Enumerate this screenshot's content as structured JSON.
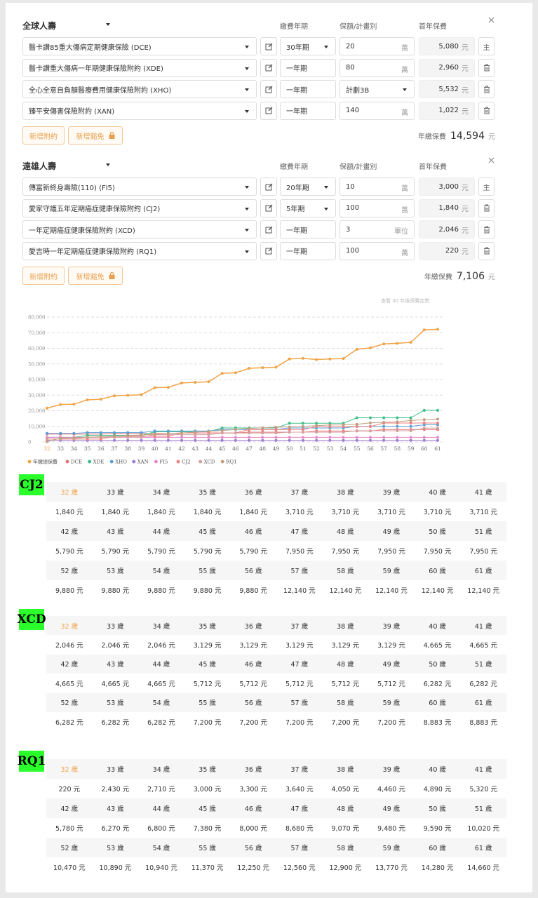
{
  "sections": [
    {
      "title": "全球人壽",
      "headers": [
        "繳費年期",
        "保額/計畫別",
        "首年保費"
      ],
      "rows": [
        {
          "product": "醫卡讚85重大傷病定期健康保險 (DCE)",
          "term": "30年期",
          "term_dropdown": true,
          "amount": "20",
          "unit": "萬",
          "premium": "5,080",
          "currency": "元",
          "action": "主"
        },
        {
          "product": "醫卡讚重大傷病一年期健康保險附約 (XDE)",
          "term": "一年期",
          "term_dropdown": false,
          "amount": "80",
          "unit": "萬",
          "premium": "2,960",
          "currency": "元"
        },
        {
          "product": "全心全意自負額醫療費用健康保險附約 (XHO)",
          "term": "一年期",
          "term_dropdown": false,
          "amount": "計劃3B",
          "amount_dropdown": true,
          "premium": "5,532",
          "currency": "元"
        },
        {
          "product": "臻平安傷害保險附約 (XAN)",
          "term": "一年期",
          "term_dropdown": false,
          "amount": "140",
          "unit": "萬",
          "premium": "1,022",
          "currency": "元"
        }
      ],
      "buttons": [
        "新增附約",
        "新增豁免"
      ],
      "total_label": "年繳保費",
      "total": "14,594",
      "total_unit": "元"
    },
    {
      "title": "遠雄人壽",
      "headers": [
        "繳費年期",
        "保額/計畫別",
        "首年保費"
      ],
      "rows": [
        {
          "product": "傳富新終身壽險(110) (FI5)",
          "term": "20年期",
          "term_dropdown": true,
          "amount": "10",
          "unit": "萬",
          "premium": "3,000",
          "currency": "元",
          "action": "主"
        },
        {
          "product": "愛家守護五年定期癌症健康保險附約 (CJ2)",
          "term": "5年期",
          "term_dropdown": true,
          "amount": "100",
          "unit": "萬",
          "premium": "1,840",
          "currency": "元"
        },
        {
          "product": "一年定期癌症健康保險附約 (XCD)",
          "term": "一年期",
          "term_dropdown": false,
          "amount": "3",
          "unit": "單位",
          "premium": "2,046",
          "currency": "元"
        },
        {
          "product": "愛吉時一年定期癌症健康保險附約 (RQ1)",
          "term": "一年期",
          "term_dropdown": false,
          "amount": "100",
          "unit": "萬",
          "premium": "220",
          "currency": "元"
        }
      ],
      "buttons": [
        "新增附約",
        "新增豁免"
      ],
      "total_label": "年繳保費",
      "total": "7,106",
      "total_unit": "元"
    }
  ],
  "chart_link": "查看 30 年後保費走勢",
  "chart_data": {
    "type": "line",
    "categories": [
      "32",
      "33",
      "34",
      "35",
      "36",
      "37",
      "38",
      "39",
      "40",
      "41",
      "42",
      "43",
      "44",
      "45",
      "46",
      "47",
      "48",
      "49",
      "50",
      "51",
      "52",
      "53",
      "54",
      "55",
      "56",
      "57",
      "58",
      "59",
      "60",
      "61"
    ],
    "ylim": [
      0,
      80000
    ],
    "yticks": [
      0,
      {
        "value": 10000,
        "label": "10,000"
      },
      {
        "value": 20000,
        "label": "20,000"
      },
      {
        "value": 30000,
        "label": "30,000"
      },
      {
        "value": 40000,
        "label": "40,000"
      },
      {
        "value": 50000,
        "label": "50,000"
      },
      {
        "value": 60000,
        "label": "60,000"
      },
      {
        "value": 70000,
        "label": "70,000"
      },
      {
        "value": 80000,
        "label": "80,000"
      }
    ],
    "grid": true,
    "series": [
      {
        "name": "年繳總保費",
        "color": "#f0a448",
        "values": [
          21700,
          24000,
          24200,
          27000,
          27400,
          29600,
          29900,
          30300,
          34800,
          35000,
          37800,
          38200,
          38600,
          44000,
          44300,
          47200,
          47600,
          47900,
          53200,
          53600,
          52800,
          53200,
          53400,
          59400,
          60300,
          62800,
          63200,
          63800,
          71800,
          72200
        ]
      },
      {
        "name": "DCE",
        "color": "#e87575",
        "values": [
          5080,
          5080,
          5080,
          5080,
          5080,
          5400,
          5400,
          5400,
          5400,
          5400,
          5800,
          5800,
          5800,
          5800,
          5800,
          6300,
          6300,
          6300,
          6300,
          6300,
          7000,
          7000,
          7000,
          7000,
          7000,
          8000,
          8000,
          8000,
          8000,
          8000
        ]
      },
      {
        "name": "XDE",
        "color": "#3dbf8a",
        "values": [
          2960,
          2960,
          2960,
          4200,
          4200,
          4200,
          4200,
          4200,
          6500,
          6500,
          6500,
          6500,
          6500,
          9000,
          9000,
          9000,
          9000,
          9000,
          12000,
          12000,
          12000,
          12000,
          12000,
          15500,
          15500,
          15500,
          15500,
          15500,
          20300,
          20300
        ]
      },
      {
        "name": "XHO",
        "color": "#5aa0d8",
        "values": [
          5532,
          5532,
          5532,
          6000,
          6000,
          6000,
          6000,
          6000,
          7000,
          7000,
          7000,
          7000,
          7000,
          8000,
          8000,
          8000,
          8000,
          8000,
          9000,
          9000,
          9000,
          9000,
          9000,
          10000,
          10000,
          10000,
          10000,
          10000,
          11000,
          11000
        ]
      },
      {
        "name": "XAN",
        "color": "#9b7fd6",
        "values": [
          1022,
          1022,
          1022,
          1022,
          1022,
          1022,
          1022,
          1022,
          1022,
          1022,
          1022,
          1022,
          1022,
          1022,
          1022,
          1022,
          1022,
          1022,
          1022,
          1022,
          1022,
          1022,
          1022,
          1022,
          1022,
          1022,
          1022,
          1022,
          1022,
          1022
        ]
      },
      {
        "name": "FI5",
        "color": "#e88ac8",
        "values": [
          3000,
          3000,
          3000,
          3000,
          3000,
          3000,
          3000,
          3000,
          3000,
          3000,
          3000,
          3000,
          3000,
          3000,
          3000,
          3000,
          3000,
          3000,
          3000,
          3000,
          3000,
          3000,
          3000,
          3000,
          3000,
          3000,
          3000,
          3000,
          3000,
          3000
        ]
      },
      {
        "name": "CJ2",
        "color": "#f08080",
        "values": [
          1840,
          1840,
          1840,
          1840,
          1840,
          3710,
          3710,
          3710,
          3710,
          3710,
          5790,
          5790,
          5790,
          5790,
          5790,
          7950,
          7950,
          7950,
          7950,
          7950,
          9880,
          9880,
          9880,
          9880,
          9880,
          12140,
          12140,
          12140,
          12140,
          12140
        ]
      },
      {
        "name": "XCD",
        "color": "#d4a0a0",
        "values": [
          2046,
          2046,
          2046,
          3129,
          3129,
          3129,
          3129,
          3129,
          4665,
          4665,
          4665,
          4665,
          4665,
          5712,
          5712,
          5712,
          5712,
          5712,
          6282,
          6282,
          6282,
          6282,
          6282,
          7200,
          7200,
          7200,
          7200,
          7200,
          8883,
          8883
        ]
      },
      {
        "name": "RQ1",
        "color": "#c0a080",
        "values": [
          220,
          2430,
          2710,
          3000,
          3300,
          3640,
          4050,
          4460,
          4890,
          5320,
          5780,
          6270,
          6800,
          7380,
          8000,
          8680,
          9070,
          9480,
          9590,
          10020,
          10470,
          10890,
          10940,
          11370,
          12250,
          12560,
          12900,
          13770,
          14280,
          14660
        ]
      }
    ]
  },
  "tables": [
    {
      "label": "CJ2",
      "rows": [
        [
          "32 歲",
          "33 歲",
          "34 歲",
          "35 歲",
          "36 歲",
          "37 歲",
          "38 歲",
          "39 歲",
          "40 歲",
          "41 歲"
        ],
        [
          "1,840 元",
          "1,840 元",
          "1,840 元",
          "1,840 元",
          "1,840 元",
          "3,710 元",
          "3,710 元",
          "3,710 元",
          "3,710 元",
          "3,710 元"
        ],
        [
          "42 歲",
          "43 歲",
          "44 歲",
          "45 歲",
          "46 歲",
          "47 歲",
          "48 歲",
          "49 歲",
          "50 歲",
          "51 歲"
        ],
        [
          "5,790 元",
          "5,790 元",
          "5,790 元",
          "5,790 元",
          "5,790 元",
          "7,950 元",
          "7,950 元",
          "7,950 元",
          "7,950 元",
          "7,950 元"
        ],
        [
          "52 歲",
          "53 歲",
          "54 歲",
          "55 歲",
          "56 歲",
          "57 歲",
          "58 歲",
          "59 歲",
          "60 歲",
          "61 歲"
        ],
        [
          "9,880 元",
          "9,880 元",
          "9,880 元",
          "9,880 元",
          "9,880 元",
          "12,140 元",
          "12,140 元",
          "12,140 元",
          "12,140 元",
          "12,140 元"
        ]
      ]
    },
    {
      "label": "XCD",
      "rows": [
        [
          "32 歲",
          "33 歲",
          "34 歲",
          "35 歲",
          "36 歲",
          "37 歲",
          "38 歲",
          "39 歲",
          "40 歲",
          "41 歲"
        ],
        [
          "2,046 元",
          "2,046 元",
          "2,046 元",
          "3,129 元",
          "3,129 元",
          "3,129 元",
          "3,129 元",
          "3,129 元",
          "4,665 元",
          "4,665 元"
        ],
        [
          "42 歲",
          "43 歲",
          "44 歲",
          "45 歲",
          "46 歲",
          "47 歲",
          "48 歲",
          "49 歲",
          "50 歲",
          "51 歲"
        ],
        [
          "4,665 元",
          "4,665 元",
          "4,665 元",
          "5,712 元",
          "5,712 元",
          "5,712 元",
          "5,712 元",
          "5,712 元",
          "6,282 元",
          "6,282 元"
        ],
        [
          "52 歲",
          "53 歲",
          "54 歲",
          "55 歲",
          "56 歲",
          "57 歲",
          "58 歲",
          "59 歲",
          "60 歲",
          "61 歲"
        ],
        [
          "6,282 元",
          "6,282 元",
          "6,282 元",
          "7,200 元",
          "7,200 元",
          "7,200 元",
          "7,200 元",
          "7,200 元",
          "8,883 元",
          "8,883 元"
        ]
      ]
    },
    {
      "label": "RQ1",
      "rows": [
        [
          "32 歲",
          "33 歲",
          "34 歲",
          "35 歲",
          "36 歲",
          "37 歲",
          "38 歲",
          "39 歲",
          "40 歲",
          "41 歲"
        ],
        [
          "220 元",
          "2,430 元",
          "2,710 元",
          "3,000 元",
          "3,300 元",
          "3,640 元",
          "4,050 元",
          "4,460 元",
          "4,890 元",
          "5,320 元"
        ],
        [
          "42 歲",
          "43 歲",
          "44 歲",
          "45 歲",
          "46 歲",
          "47 歲",
          "48 歲",
          "49 歲",
          "50 歲",
          "51 歲"
        ],
        [
          "5,780 元",
          "6,270 元",
          "6,800 元",
          "7,380 元",
          "8,000 元",
          "8,680 元",
          "9,070 元",
          "9,480 元",
          "9,590 元",
          "10,020 元"
        ],
        [
          "52 歲",
          "53 歲",
          "54 歲",
          "55 歲",
          "56 歲",
          "57 歲",
          "58 歲",
          "59 歲",
          "60 歲",
          "61 歲"
        ],
        [
          "10,470 元",
          "10,890 元",
          "10,940 元",
          "11,370 元",
          "12,250 元",
          "12,560 元",
          "12,900 元",
          "13,770 元",
          "14,280 元",
          "14,660 元"
        ]
      ]
    }
  ]
}
